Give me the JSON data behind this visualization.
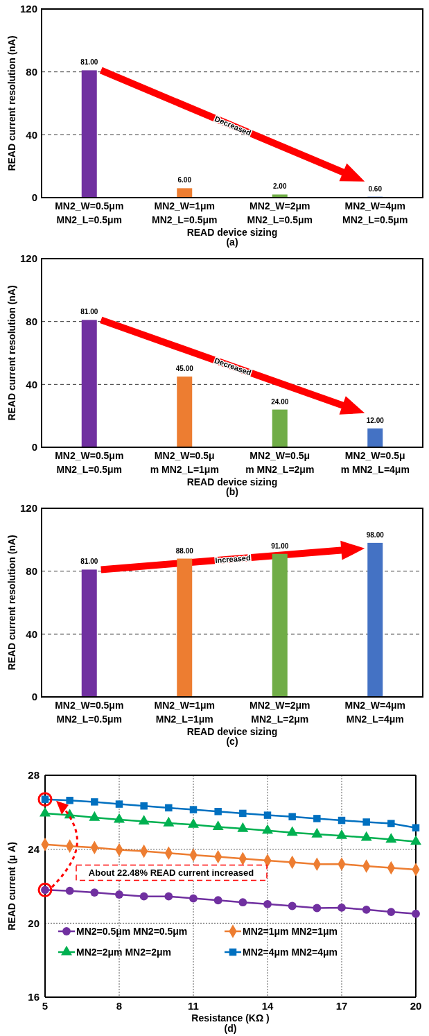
{
  "chart_data": [
    {
      "type": "bar",
      "xlabel": "READ device sizing",
      "ylabel": "READ current resolution (nA)",
      "categories": [
        "MN2_W=0.5μm\nMN2_L=0.5μm",
        "MN2_W=1μm\nMN2_L=0.5μm",
        "MN2_W=2μm\nMN2_L=0.5μm",
        "MN2_W=4μm\nMN2_L=0.5μm"
      ],
      "values": [
        81,
        6,
        2,
        0.6
      ],
      "colors": [
        "#7030a0",
        "#ed7d31",
        "#70ad47",
        "#4472c4"
      ],
      "value_labels": [
        "81.00",
        "6.00",
        "2.00",
        "0.60"
      ],
      "ylim": [
        0,
        120
      ],
      "yticks": [
        0,
        40,
        80,
        120
      ],
      "grid": "y",
      "annotations": [
        "Decreased",
        "(a)"
      ]
    },
    {
      "type": "bar",
      "xlabel": "READ device sizing",
      "ylabel": "READ current resolution (nA)",
      "categories": [
        "MN2_W=0.5μm\nMN2_L=0.5μm",
        "MN2_W=0.5μ\nm MN2_L=1μm",
        "MN2_W=0.5μ\nm MN2_L=2μm",
        "MN2_W=0.5μ\nm MN2_L=4μm"
      ],
      "values": [
        81,
        45,
        24,
        12
      ],
      "colors": [
        "#7030a0",
        "#ed7d31",
        "#70ad47",
        "#4472c4"
      ],
      "value_labels": [
        "81.00",
        "45.00",
        "24.00",
        "12.00"
      ],
      "ylim": [
        0,
        120
      ],
      "yticks": [
        0,
        40,
        80,
        120
      ],
      "grid": "y",
      "annotations": [
        "Decreased",
        "(b)"
      ]
    },
    {
      "type": "bar",
      "xlabel": "READ device sizing",
      "ylabel": "READ current resolution (nA)",
      "categories": [
        "MN2_W=0.5μm\nMN2_L=0.5μm",
        "MN2_W=1μm\nMN2_L=1μm",
        "MN2_W=2μm\nMN2_L=2μm",
        "MN2_W=4μm\nMN2_L=4μm"
      ],
      "values": [
        81,
        88,
        91,
        98
      ],
      "colors": [
        "#7030a0",
        "#ed7d31",
        "#70ad47",
        "#4472c4"
      ],
      "value_labels": [
        "81.00",
        "88.00",
        "91.00",
        "98.00"
      ],
      "ylim": [
        0,
        120
      ],
      "yticks": [
        0,
        40,
        80,
        120
      ],
      "grid": "y",
      "annotations": [
        "Increased",
        "(c)"
      ]
    },
    {
      "type": "line",
      "xlabel": "Resistance (KΩ )",
      "ylabel": "READ current (μ A)",
      "x": [
        5,
        6,
        7,
        8,
        9,
        10,
        11,
        12,
        13,
        14,
        15,
        16,
        17,
        18,
        19,
        20
      ],
      "xlim": [
        5,
        20
      ],
      "xticks": [
        5,
        8,
        11,
        14,
        17,
        20
      ],
      "ylim": [
        16,
        28
      ],
      "yticks": [
        16,
        20,
        24,
        28
      ],
      "grid": true,
      "legend": "bottom",
      "series": [
        {
          "name": "MN2=0.5μm MN2=0.5μm",
          "color": "#7030a0",
          "marker": "circle",
          "values": [
            21.8,
            21.75,
            21.66,
            21.55,
            21.45,
            21.45,
            21.34,
            21.24,
            21.13,
            21.03,
            20.93,
            20.82,
            20.84,
            20.73,
            20.61,
            20.51
          ]
        },
        {
          "name": "MN2=1μm MN2=1μm",
          "color": "#ed7d31",
          "marker": "diamond",
          "values": [
            24.26,
            24.17,
            24.09,
            23.97,
            23.89,
            23.79,
            23.69,
            23.59,
            23.49,
            23.39,
            23.29,
            23.19,
            23.2,
            23.09,
            22.99,
            22.9
          ]
        },
        {
          "name": "MN2=2μm MN2=2μm",
          "color": "#00b050",
          "marker": "triangle",
          "values": [
            25.94,
            25.84,
            25.71,
            25.6,
            25.51,
            25.41,
            25.33,
            25.21,
            25.11,
            25.01,
            24.9,
            24.81,
            24.73,
            24.63,
            24.53,
            24.41
          ]
        },
        {
          "name": "MN2=4μm MN2=4μm",
          "color": "#0070c0",
          "marker": "square",
          "values": [
            26.7,
            26.64,
            26.56,
            26.44,
            26.34,
            26.24,
            26.14,
            26.04,
            25.94,
            25.84,
            25.76,
            25.66,
            25.56,
            25.47,
            25.39,
            25.16
          ]
        }
      ],
      "annotations": [
        "About 22.48% READ current increased",
        "(d)"
      ]
    }
  ]
}
